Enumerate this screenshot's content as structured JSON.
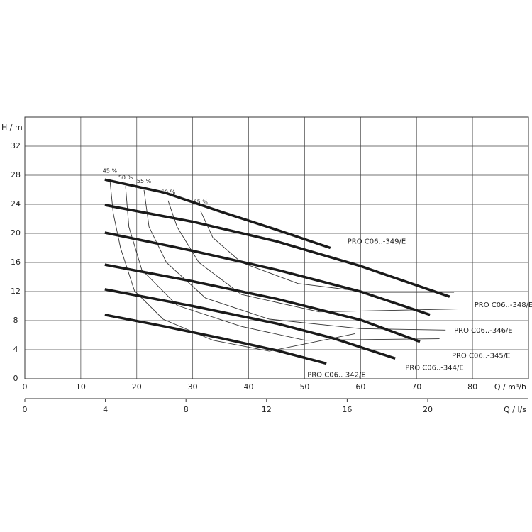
{
  "chart_data": {
    "type": "line",
    "y_label": "H / m",
    "x_label": "Q / m³/h",
    "x2_label": "Q / l/s",
    "xlim": [
      0,
      90
    ],
    "xticks": [
      0,
      10,
      20,
      30,
      40,
      50,
      60,
      70,
      80
    ],
    "ylim": [
      0,
      36
    ],
    "yticks": [
      0,
      4,
      8,
      12,
      16,
      20,
      24,
      28,
      32
    ],
    "x2lim": [
      0,
      25
    ],
    "x2ticks": [
      0,
      4,
      8,
      12,
      16,
      20
    ],
    "grid": true,
    "series": [
      {
        "name": "PRO C06..-349/E",
        "color": "#1a1a1a",
        "x": [
          14.3,
          25,
          35,
          45,
          54.6
        ],
        "values": [
          27.4,
          25.6,
          23.0,
          20.5,
          18.0
        ]
      },
      {
        "name": "PRO C06..-348/E",
        "color": "#1a1a1a",
        "x": [
          14.3,
          30,
          45,
          60,
          75.9
        ],
        "values": [
          23.9,
          21.6,
          18.9,
          15.5,
          11.3
        ]
      },
      {
        "name": "PRO C06..-346/E",
        "color": "#1a1a1a",
        "x": [
          14.3,
          30,
          45,
          60,
          72.4
        ],
        "values": [
          20.1,
          17.6,
          15.0,
          12.0,
          8.8
        ]
      },
      {
        "name": "PRO C06..-345/E",
        "color": "#1a1a1a",
        "x": [
          14.3,
          30,
          45,
          60,
          70.6
        ],
        "values": [
          15.7,
          13.4,
          11.0,
          8.1,
          5.1
        ]
      },
      {
        "name": "PRO C06..-344/E",
        "color": "#1a1a1a",
        "x": [
          14.3,
          30,
          45,
          55,
          66.2
        ],
        "values": [
          12.3,
          10.0,
          7.6,
          5.6,
          2.8
        ]
      },
      {
        "name": "PRO C06..-342/E",
        "color": "#1a1a1a",
        "x": [
          14.3,
          25,
          35,
          45,
          53.9
        ],
        "values": [
          8.8,
          7.2,
          5.6,
          3.9,
          2.1
        ]
      }
    ],
    "efficiency_curves": [
      {
        "label": "45 %",
        "color": "#333333",
        "x": [
          15.2,
          15.8,
          17.1,
          19.6,
          24.7,
          33.6,
          43.7,
          59.0
        ],
        "values": [
          27.4,
          22.8,
          18.0,
          12.1,
          8.2,
          5.3,
          3.8,
          6.2
        ]
      },
      {
        "label": "50 %",
        "color": "#333333",
        "x": [
          18.0,
          18.6,
          20.9,
          27.2,
          38.7,
          50.1,
          74.1
        ],
        "values": [
          26.5,
          20.9,
          15.0,
          10.1,
          7.2,
          5.3,
          5.5
        ]
      },
      {
        "label": "55 %",
        "color": "#333333",
        "x": [
          21.3,
          22.2,
          25.3,
          32.3,
          43.7,
          60.0,
          75.2
        ],
        "values": [
          26.0,
          20.9,
          16.0,
          11.1,
          8.2,
          6.9,
          6.7
        ]
      },
      {
        "label": "60 %",
        "color": "#333333",
        "x": [
          25.6,
          27.2,
          31.1,
          38.7,
          52.6,
          77.4
        ],
        "values": [
          24.5,
          20.9,
          16.0,
          11.6,
          9.2,
          9.6
        ]
      },
      {
        "label": "65 %",
        "color": "#333333",
        "x": [
          31.4,
          33.6,
          38.7,
          48.8,
          61.5,
          76.7
        ],
        "values": [
          23.1,
          19.4,
          16.0,
          13.1,
          11.9,
          11.9
        ]
      }
    ]
  }
}
